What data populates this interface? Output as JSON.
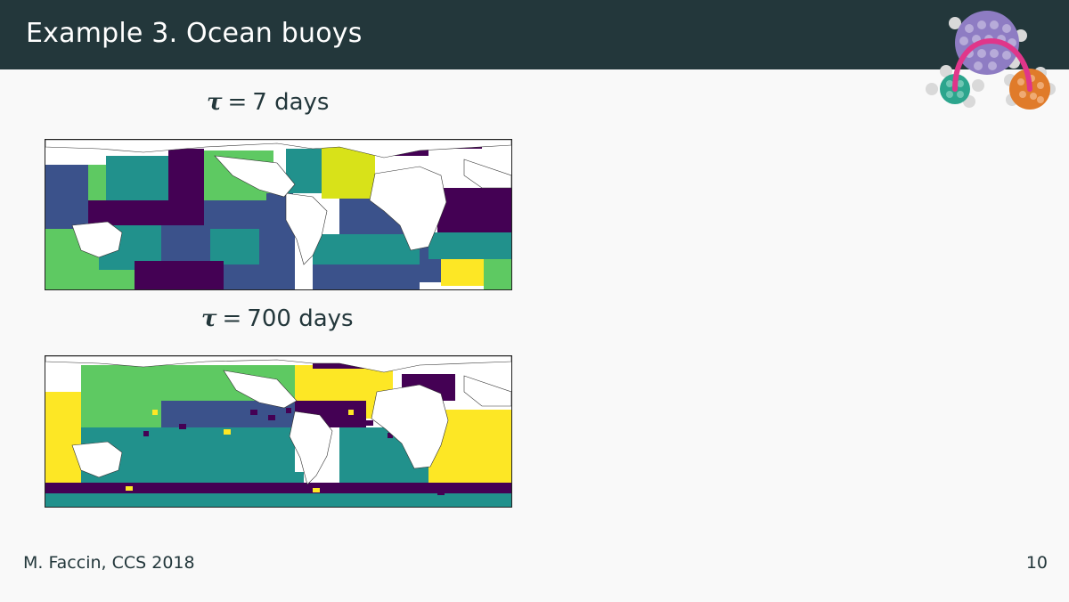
{
  "slide": {
    "title": "Example 3. Ocean buoys",
    "footer_left": "M. Faccin, CCS 2018",
    "page_number": "10"
  },
  "panels": [
    {
      "symbol": "τ",
      "equals": "=",
      "value": "7",
      "unit": "days"
    },
    {
      "symbol": "τ",
      "equals": "=",
      "value": "700",
      "unit": "days"
    }
  ],
  "colors": {
    "header_bg": "#23373b",
    "background": "#f9f9f9",
    "viridis_purple": "#440154",
    "viridis_blue": "#3b528b",
    "viridis_teal": "#21918c",
    "viridis_green": "#5ec962",
    "viridis_yellow": "#fde725",
    "logo_purple": "#8e7cc3",
    "logo_teal": "#2ca58d",
    "logo_orange": "#e07b2a",
    "logo_arc": "#e0368a"
  }
}
